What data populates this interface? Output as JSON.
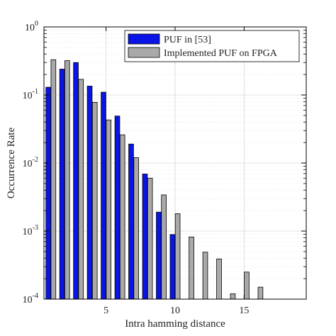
{
  "chart_data": {
    "type": "bar",
    "xlabel": "Intra hamming distance",
    "ylabel": "Occurrence Rate",
    "yscale": "log",
    "ylim": [
      0.0001,
      1
    ],
    "xlim": [
      0.5,
      19.5
    ],
    "xticks": [
      5,
      10,
      15
    ],
    "yticks": [
      {
        "value": 1,
        "base": "10",
        "exp": "0"
      },
      {
        "value": 0.1,
        "base": "10",
        "exp": "-1"
      },
      {
        "value": 0.01,
        "base": "10",
        "exp": "-2"
      },
      {
        "value": 0.001,
        "base": "10",
        "exp": "-3"
      },
      {
        "value": 0.0001,
        "base": "10",
        "exp": "-4"
      }
    ],
    "grid": true,
    "legend_position": "top-right",
    "x": [
      1,
      2,
      3,
      4,
      5,
      6,
      7,
      8,
      9,
      10,
      11,
      12,
      13,
      14,
      15,
      16,
      17,
      18
    ],
    "series": [
      {
        "name": "PUF in [53]",
        "color": "#0a14e6",
        "values": [
          0.13,
          0.24,
          0.3,
          0.135,
          0.11,
          0.049,
          0.019,
          0.0069,
          0.0019,
          0.00089,
          null,
          null,
          null,
          null,
          null,
          null,
          null,
          null
        ]
      },
      {
        "name": "Implemented PUF on FPGA",
        "color": "#a9a9a9",
        "values": [
          0.33,
          0.32,
          0.17,
          0.078,
          0.043,
          0.026,
          0.012,
          0.006,
          0.0034,
          0.0018,
          0.00082,
          0.00049,
          0.00039,
          0.00012,
          0.00025,
          0.00015,
          null,
          null
        ]
      }
    ]
  }
}
